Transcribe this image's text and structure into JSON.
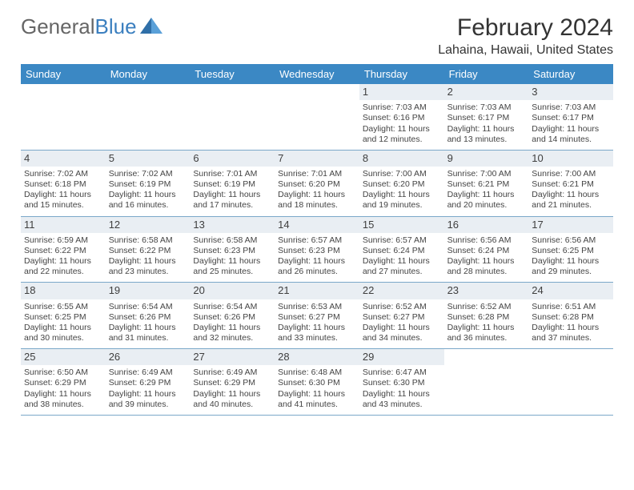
{
  "brand": {
    "part1": "General",
    "part2": "Blue"
  },
  "title": "February 2024",
  "location": "Lahaina, Hawaii, United States",
  "colors": {
    "header_bg": "#3b88c4",
    "header_text": "#ffffff",
    "daynum_bg": "#e9eef3",
    "rule": "#7ba8c9",
    "text": "#3a3a3a",
    "brand_gray": "#666666",
    "brand_blue": "#3b7fbf",
    "page_bg": "#ffffff"
  },
  "typography": {
    "month_fontsize": 30,
    "location_fontsize": 16,
    "dayheader_fontsize": 13,
    "cell_fontsize": 10.5
  },
  "day_headers": [
    "Sunday",
    "Monday",
    "Tuesday",
    "Wednesday",
    "Thursday",
    "Friday",
    "Saturday"
  ],
  "weeks": [
    [
      {
        "n": "",
        "sr": "",
        "ss": "",
        "d1": "",
        "d2": ""
      },
      {
        "n": "",
        "sr": "",
        "ss": "",
        "d1": "",
        "d2": ""
      },
      {
        "n": "",
        "sr": "",
        "ss": "",
        "d1": "",
        "d2": ""
      },
      {
        "n": "",
        "sr": "",
        "ss": "",
        "d1": "",
        "d2": ""
      },
      {
        "n": "1",
        "sr": "Sunrise: 7:03 AM",
        "ss": "Sunset: 6:16 PM",
        "d1": "Daylight: 11 hours",
        "d2": "and 12 minutes."
      },
      {
        "n": "2",
        "sr": "Sunrise: 7:03 AM",
        "ss": "Sunset: 6:17 PM",
        "d1": "Daylight: 11 hours",
        "d2": "and 13 minutes."
      },
      {
        "n": "3",
        "sr": "Sunrise: 7:03 AM",
        "ss": "Sunset: 6:17 PM",
        "d1": "Daylight: 11 hours",
        "d2": "and 14 minutes."
      }
    ],
    [
      {
        "n": "4",
        "sr": "Sunrise: 7:02 AM",
        "ss": "Sunset: 6:18 PM",
        "d1": "Daylight: 11 hours",
        "d2": "and 15 minutes."
      },
      {
        "n": "5",
        "sr": "Sunrise: 7:02 AM",
        "ss": "Sunset: 6:19 PM",
        "d1": "Daylight: 11 hours",
        "d2": "and 16 minutes."
      },
      {
        "n": "6",
        "sr": "Sunrise: 7:01 AM",
        "ss": "Sunset: 6:19 PM",
        "d1": "Daylight: 11 hours",
        "d2": "and 17 minutes."
      },
      {
        "n": "7",
        "sr": "Sunrise: 7:01 AM",
        "ss": "Sunset: 6:20 PM",
        "d1": "Daylight: 11 hours",
        "d2": "and 18 minutes."
      },
      {
        "n": "8",
        "sr": "Sunrise: 7:00 AM",
        "ss": "Sunset: 6:20 PM",
        "d1": "Daylight: 11 hours",
        "d2": "and 19 minutes."
      },
      {
        "n": "9",
        "sr": "Sunrise: 7:00 AM",
        "ss": "Sunset: 6:21 PM",
        "d1": "Daylight: 11 hours",
        "d2": "and 20 minutes."
      },
      {
        "n": "10",
        "sr": "Sunrise: 7:00 AM",
        "ss": "Sunset: 6:21 PM",
        "d1": "Daylight: 11 hours",
        "d2": "and 21 minutes."
      }
    ],
    [
      {
        "n": "11",
        "sr": "Sunrise: 6:59 AM",
        "ss": "Sunset: 6:22 PM",
        "d1": "Daylight: 11 hours",
        "d2": "and 22 minutes."
      },
      {
        "n": "12",
        "sr": "Sunrise: 6:58 AM",
        "ss": "Sunset: 6:22 PM",
        "d1": "Daylight: 11 hours",
        "d2": "and 23 minutes."
      },
      {
        "n": "13",
        "sr": "Sunrise: 6:58 AM",
        "ss": "Sunset: 6:23 PM",
        "d1": "Daylight: 11 hours",
        "d2": "and 25 minutes."
      },
      {
        "n": "14",
        "sr": "Sunrise: 6:57 AM",
        "ss": "Sunset: 6:23 PM",
        "d1": "Daylight: 11 hours",
        "d2": "and 26 minutes."
      },
      {
        "n": "15",
        "sr": "Sunrise: 6:57 AM",
        "ss": "Sunset: 6:24 PM",
        "d1": "Daylight: 11 hours",
        "d2": "and 27 minutes."
      },
      {
        "n": "16",
        "sr": "Sunrise: 6:56 AM",
        "ss": "Sunset: 6:24 PM",
        "d1": "Daylight: 11 hours",
        "d2": "and 28 minutes."
      },
      {
        "n": "17",
        "sr": "Sunrise: 6:56 AM",
        "ss": "Sunset: 6:25 PM",
        "d1": "Daylight: 11 hours",
        "d2": "and 29 minutes."
      }
    ],
    [
      {
        "n": "18",
        "sr": "Sunrise: 6:55 AM",
        "ss": "Sunset: 6:25 PM",
        "d1": "Daylight: 11 hours",
        "d2": "and 30 minutes."
      },
      {
        "n": "19",
        "sr": "Sunrise: 6:54 AM",
        "ss": "Sunset: 6:26 PM",
        "d1": "Daylight: 11 hours",
        "d2": "and 31 minutes."
      },
      {
        "n": "20",
        "sr": "Sunrise: 6:54 AM",
        "ss": "Sunset: 6:26 PM",
        "d1": "Daylight: 11 hours",
        "d2": "and 32 minutes."
      },
      {
        "n": "21",
        "sr": "Sunrise: 6:53 AM",
        "ss": "Sunset: 6:27 PM",
        "d1": "Daylight: 11 hours",
        "d2": "and 33 minutes."
      },
      {
        "n": "22",
        "sr": "Sunrise: 6:52 AM",
        "ss": "Sunset: 6:27 PM",
        "d1": "Daylight: 11 hours",
        "d2": "and 34 minutes."
      },
      {
        "n": "23",
        "sr": "Sunrise: 6:52 AM",
        "ss": "Sunset: 6:28 PM",
        "d1": "Daylight: 11 hours",
        "d2": "and 36 minutes."
      },
      {
        "n": "24",
        "sr": "Sunrise: 6:51 AM",
        "ss": "Sunset: 6:28 PM",
        "d1": "Daylight: 11 hours",
        "d2": "and 37 minutes."
      }
    ],
    [
      {
        "n": "25",
        "sr": "Sunrise: 6:50 AM",
        "ss": "Sunset: 6:29 PM",
        "d1": "Daylight: 11 hours",
        "d2": "and 38 minutes."
      },
      {
        "n": "26",
        "sr": "Sunrise: 6:49 AM",
        "ss": "Sunset: 6:29 PM",
        "d1": "Daylight: 11 hours",
        "d2": "and 39 minutes."
      },
      {
        "n": "27",
        "sr": "Sunrise: 6:49 AM",
        "ss": "Sunset: 6:29 PM",
        "d1": "Daylight: 11 hours",
        "d2": "and 40 minutes."
      },
      {
        "n": "28",
        "sr": "Sunrise: 6:48 AM",
        "ss": "Sunset: 6:30 PM",
        "d1": "Daylight: 11 hours",
        "d2": "and 41 minutes."
      },
      {
        "n": "29",
        "sr": "Sunrise: 6:47 AM",
        "ss": "Sunset: 6:30 PM",
        "d1": "Daylight: 11 hours",
        "d2": "and 43 minutes."
      },
      {
        "n": "",
        "sr": "",
        "ss": "",
        "d1": "",
        "d2": ""
      },
      {
        "n": "",
        "sr": "",
        "ss": "",
        "d1": "",
        "d2": ""
      }
    ]
  ]
}
